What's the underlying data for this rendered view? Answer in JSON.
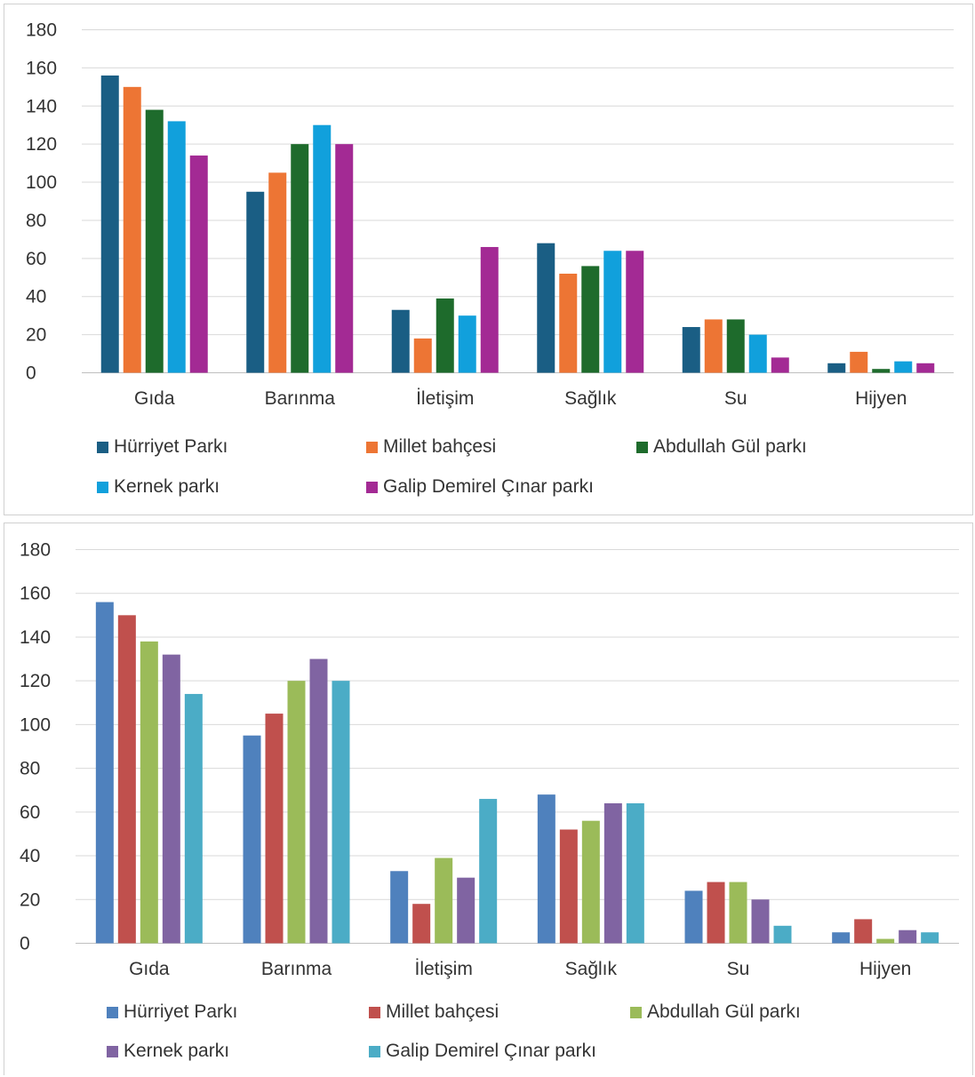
{
  "chart_data": [
    {
      "type": "bar",
      "categories": [
        "Gıda",
        "Barınma",
        "İletişim",
        "Sağlık",
        "Su",
        "Hijyen"
      ],
      "ylim": [
        0,
        180
      ],
      "yticks": [
        0,
        20,
        40,
        60,
        80,
        100,
        120,
        140,
        160,
        180
      ],
      "grid": true,
      "legend_position": "bottom",
      "series": [
        {
          "name": "Hürriyet Parkı",
          "color": "#1a5e84",
          "values": [
            156,
            95,
            33,
            68,
            24,
            5
          ]
        },
        {
          "name": "Millet bahçesi",
          "color": "#ed7534",
          "values": [
            150,
            105,
            18,
            52,
            28,
            11
          ]
        },
        {
          "name": "Abdullah Gül parkı",
          "color": "#1e6b2c",
          "values": [
            138,
            120,
            39,
            56,
            28,
            2
          ]
        },
        {
          "name": "Kernek parkı",
          "color": "#11a0dc",
          "values": [
            132,
            130,
            30,
            64,
            20,
            6
          ]
        },
        {
          "name": "Galip Demirel Çınar parkı",
          "color": "#a32a94",
          "values": [
            114,
            120,
            66,
            64,
            8,
            5
          ]
        }
      ]
    },
    {
      "type": "bar",
      "categories": [
        "Gıda",
        "Barınma",
        "İletişim",
        "Sağlık",
        "Su",
        "Hijyen"
      ],
      "ylim": [
        0,
        180
      ],
      "yticks": [
        0,
        20,
        40,
        60,
        80,
        100,
        120,
        140,
        160,
        180
      ],
      "grid": true,
      "legend_position": "bottom",
      "series": [
        {
          "name": "Hürriyet Parkı",
          "color": "#4f81bd",
          "values": [
            156,
            95,
            33,
            68,
            24,
            5
          ]
        },
        {
          "name": "Millet bahçesi",
          "color": "#c0504d",
          "values": [
            150,
            105,
            18,
            52,
            28,
            11
          ]
        },
        {
          "name": "Abdullah Gül parkı",
          "color": "#9bbb59",
          "values": [
            138,
            120,
            39,
            56,
            28,
            2
          ]
        },
        {
          "name": "Kernek parkı",
          "color": "#8064a2",
          "values": [
            132,
            130,
            30,
            64,
            20,
            6
          ]
        },
        {
          "name": "Galip Demirel Çınar parkı",
          "color": "#4bacc6",
          "values": [
            114,
            120,
            66,
            64,
            8,
            5
          ]
        }
      ]
    }
  ]
}
